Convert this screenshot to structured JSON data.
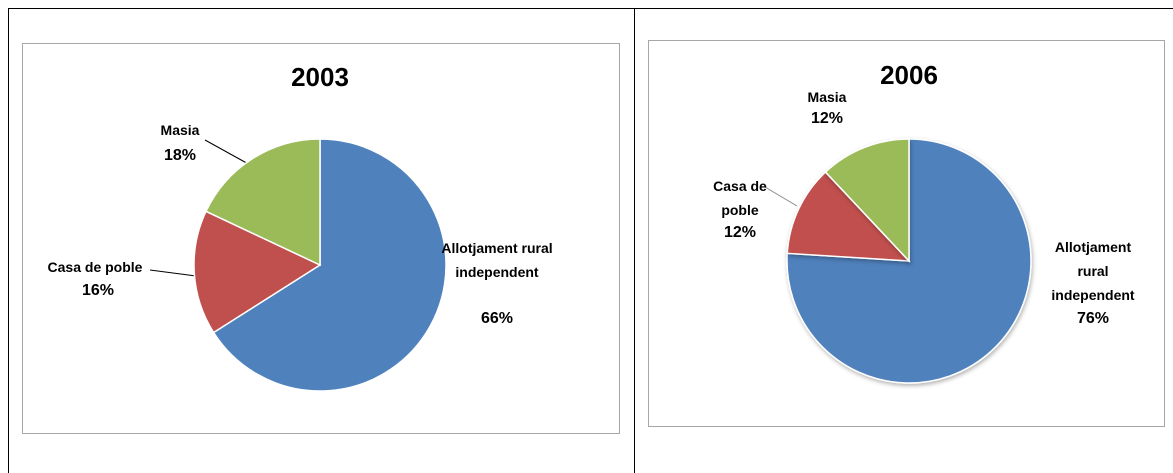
{
  "chart_data": [
    {
      "type": "pie",
      "title": "2003",
      "categories": [
        "Allotjament rural independent",
        "Casa de poble",
        "Masia"
      ],
      "values": [
        66,
        16,
        18
      ],
      "value_labels": [
        "66%",
        "16%",
        "18%"
      ],
      "colors": [
        "#4f81bd",
        "#c0504d",
        "#9bbb59"
      ]
    },
    {
      "type": "pie",
      "title": "2006",
      "categories": [
        "Allotjament rural independent",
        "Casa de poble",
        "Masia"
      ],
      "values": [
        76,
        12,
        12
      ],
      "value_labels": [
        "76%",
        "12%",
        "12%"
      ],
      "colors": [
        "#4f81bd",
        "#c0504d",
        "#9bbb59"
      ]
    }
  ]
}
